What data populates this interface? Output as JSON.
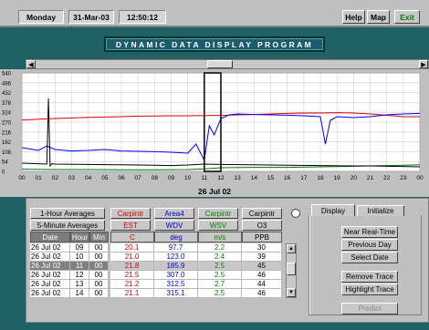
{
  "topbar": {
    "day": "Monday",
    "date": "31-Mar-03",
    "time": "12:50:12",
    "help_label": "Help",
    "map_label": "Map",
    "exit_label": "Exit"
  },
  "title": "DYNAMIC DATA DISPLAY PROGRAM",
  "scroll_arrows": {
    "left": "◀",
    "right": "▶",
    "up": "▲",
    "down": "▼"
  },
  "chart_data": {
    "type": "line",
    "title": "",
    "xlabel": "26 Jul 02",
    "ylabel": "",
    "x_ticks": [
      "00",
      "01",
      "02",
      "03",
      "04",
      "05",
      "06",
      "07",
      "08",
      "09",
      "10",
      "11",
      "12",
      "13",
      "14",
      "15",
      "16",
      "17",
      "18",
      "19",
      "20",
      "21",
      "22",
      "23",
      "00"
    ],
    "y_ticks": [
      540,
      486,
      432,
      378,
      324,
      270,
      216,
      162,
      108,
      54,
      0
    ],
    "ylim": [
      0,
      540
    ],
    "xlim": [
      0,
      24
    ],
    "grid": true,
    "highlight_window": [
      11,
      12
    ],
    "series": [
      {
        "color": "#e00000",
        "x": [
          0,
          1,
          2,
          3,
          4,
          5,
          6,
          7,
          8,
          9,
          10,
          11,
          12,
          13,
          14,
          15,
          16,
          17,
          18,
          19,
          20,
          21,
          22,
          23,
          24
        ],
        "y": [
          282,
          286,
          290,
          293,
          296,
          298,
          300,
          303,
          304,
          305,
          305,
          306,
          307,
          310,
          312,
          315,
          318,
          320,
          320,
          322,
          320,
          315,
          308,
          300,
          300
        ]
      },
      {
        "color": "#0000ff",
        "x": [
          0,
          1,
          1.5,
          2,
          3,
          4,
          5,
          6,
          7,
          8,
          9,
          10,
          10.5,
          11,
          11.3,
          11.6,
          12,
          12.5,
          13,
          14,
          15,
          16,
          17,
          18,
          18.3,
          18.6,
          19,
          20,
          21,
          22,
          23,
          24
        ],
        "y": [
          130,
          115,
          140,
          120,
          112,
          115,
          120,
          112,
          110,
          108,
          105,
          100,
          150,
          60,
          250,
          200,
          290,
          310,
          315,
          312,
          310,
          308,
          305,
          300,
          150,
          280,
          300,
          295,
          300,
          310,
          315,
          318
        ]
      },
      {
        "color": "#007800",
        "x": [
          0,
          2,
          4,
          6,
          8,
          10,
          11,
          12,
          14,
          16,
          18,
          20,
          21,
          22,
          23,
          24
        ],
        "y": [
          12,
          10,
          10,
          9,
          9,
          10,
          14,
          20,
          22,
          22,
          25,
          28,
          30,
          32,
          34,
          36
        ]
      },
      {
        "color": "#000000",
        "x": [
          0,
          1,
          1.5,
          1.6,
          1.7,
          1.8,
          2,
          4,
          6,
          8,
          9,
          10,
          11,
          12,
          14,
          16,
          18,
          20,
          21,
          22,
          23,
          24
        ],
        "y": [
          45,
          42,
          40,
          400,
          30,
          42,
          40,
          38,
          36,
          34,
          32,
          35,
          40,
          38,
          36,
          34,
          32,
          30,
          30,
          28,
          27,
          25
        ]
      }
    ]
  },
  "table": {
    "legend_rows": [
      {
        "label": "1-Hour Averages",
        "cols": [
          {
            "text": "Carpintr",
            "color": "#d00000"
          },
          {
            "text": "Area4",
            "color": "#0000d0"
          },
          {
            "text": "Carpintr",
            "color": "#008000"
          },
          {
            "text": "Carpintr",
            "color": "#000000"
          }
        ]
      },
      {
        "label": "5-Minute Averages",
        "cols": [
          {
            "text": "EST",
            "color": "#d00000"
          },
          {
            "text": "WDV",
            "color": "#0000d0"
          },
          {
            "text": "WSV",
            "color": "#008000"
          },
          {
            "text": "O3",
            "color": "#000000"
          }
        ]
      }
    ],
    "headers": [
      "Date",
      "Hour",
      "Min",
      "C",
      "deg",
      "m/s",
      "PPB"
    ],
    "header_colors": [
      "#ffffff",
      "#ffffff",
      "#ffffff",
      "#d00000",
      "#0000d0",
      "#008000",
      "#000000"
    ],
    "rows": [
      [
        "26 Jul 02",
        "09",
        "00",
        "20.1",
        "97.7",
        "2.2",
        "30"
      ],
      [
        "26 Jul 02",
        "10",
        "00",
        "21.0",
        "123.0",
        "2.4",
        "39"
      ],
      [
        "26 Jul 02",
        "11",
        "00",
        "21.8",
        "185.9",
        "2.5",
        "45"
      ],
      [
        "26 Jul 02",
        "12",
        "00",
        "21.5",
        "307.0",
        "2.5",
        "46"
      ],
      [
        "26 Jul 02",
        "13",
        "00",
        "21.2",
        "312.5",
        "2.7",
        "44"
      ],
      [
        "26 Jul 02",
        "14",
        "00",
        "21.1",
        "315.1",
        "2.5",
        "46"
      ]
    ],
    "selected_row": 2,
    "value_colors": [
      "#000000",
      "#000000",
      "#000000",
      "#d00000",
      "#0000d0",
      "#008000",
      "#000000"
    ]
  },
  "tabs": {
    "display_label": "Display",
    "initialize_label": "Initialize"
  },
  "buttons": {
    "near_real_time": "Near Real-Time",
    "previous_day": "Previous Day",
    "select_date": "Select Date",
    "remove_trace": "Remove Trace",
    "highlight_trace": "Highlight Trace",
    "predict": "Predict"
  }
}
